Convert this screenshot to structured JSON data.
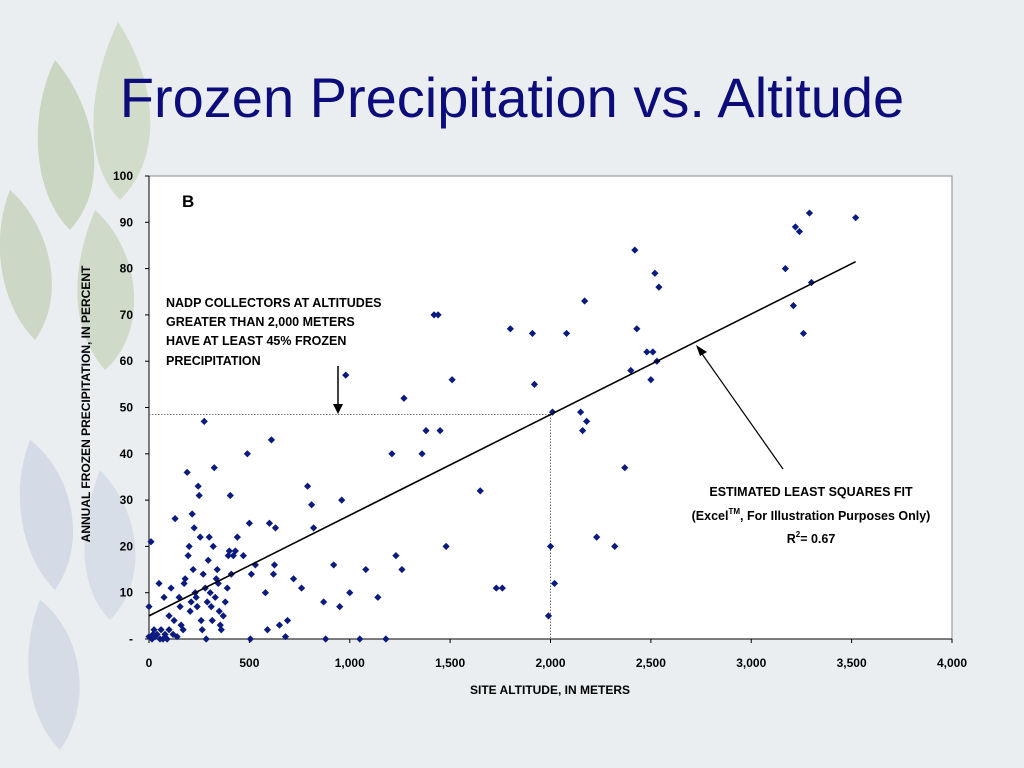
{
  "slide": {
    "title": "Frozen Precipitation vs. Altitude"
  },
  "colors": {
    "background": "#eaeef1",
    "title": "#0c0c7a",
    "marker": "#0a1a7e",
    "leaf_green": "#c9d6c1",
    "leaf_blue": "#d4dbe6"
  },
  "chart_data": {
    "type": "scatter",
    "panel_label": "B",
    "xlabel": "SITE ALTITUDE, IN METERS",
    "ylabel": "ANNUAL FROZEN PRECIPITATION, IN PERCENT",
    "xlim": [
      0,
      4000
    ],
    "ylim": [
      0,
      100
    ],
    "x_ticks": [
      {
        "value": 0,
        "label": "0"
      },
      {
        "value": 500,
        "label": "500"
      },
      {
        "value": 1000,
        "label": "1,000"
      },
      {
        "value": 1500,
        "label": "1,500"
      },
      {
        "value": 2000,
        "label": "2,000"
      },
      {
        "value": 2500,
        "label": "2,500"
      },
      {
        "value": 3000,
        "label": "3,000"
      },
      {
        "value": 3500,
        "label": "3,500"
      },
      {
        "value": 4000,
        "label": "4,000"
      }
    ],
    "y_ticks": [
      {
        "value": 0,
        "label": "-"
      },
      {
        "value": 10,
        "label": "10"
      },
      {
        "value": 20,
        "label": "20"
      },
      {
        "value": 30,
        "label": "30"
      },
      {
        "value": 40,
        "label": "40"
      },
      {
        "value": 50,
        "label": "50"
      },
      {
        "value": 60,
        "label": "60"
      },
      {
        "value": 70,
        "label": "70"
      },
      {
        "value": 80,
        "label": "80"
      },
      {
        "value": 90,
        "label": "90"
      },
      {
        "value": 100,
        "label": "100"
      }
    ],
    "grid": false,
    "marker": "diamond",
    "series": [
      {
        "points": [
          [
            0,
            7
          ],
          [
            0,
            0.5
          ],
          [
            10,
            21
          ],
          [
            15,
            0
          ],
          [
            20,
            1
          ],
          [
            25,
            2
          ],
          [
            30,
            0.5
          ],
          [
            40,
            1
          ],
          [
            50,
            12
          ],
          [
            55,
            0
          ],
          [
            60,
            2
          ],
          [
            70,
            0
          ],
          [
            75,
            9
          ],
          [
            80,
            1
          ],
          [
            90,
            0
          ],
          [
            100,
            5
          ],
          [
            100,
            2
          ],
          [
            110,
            11
          ],
          [
            120,
            1
          ],
          [
            125,
            4
          ],
          [
            130,
            26
          ],
          [
            140,
            0.5
          ],
          [
            150,
            9
          ],
          [
            155,
            7
          ],
          [
            160,
            3
          ],
          [
            170,
            2
          ],
          [
            175,
            12
          ],
          [
            180,
            13
          ],
          [
            190,
            36
          ],
          [
            195,
            18
          ],
          [
            200,
            20
          ],
          [
            205,
            6
          ],
          [
            210,
            8
          ],
          [
            215,
            27
          ],
          [
            220,
            15
          ],
          [
            225,
            24
          ],
          [
            230,
            10
          ],
          [
            235,
            9
          ],
          [
            240,
            7
          ],
          [
            245,
            33
          ],
          [
            250,
            31
          ],
          [
            255,
            22
          ],
          [
            260,
            4
          ],
          [
            265,
            2
          ],
          [
            270,
            14
          ],
          [
            275,
            47
          ],
          [
            280,
            11
          ],
          [
            285,
            0
          ],
          [
            290,
            8
          ],
          [
            295,
            17
          ],
          [
            300,
            22
          ],
          [
            305,
            10
          ],
          [
            310,
            7
          ],
          [
            315,
            4
          ],
          [
            320,
            20
          ],
          [
            325,
            37
          ],
          [
            330,
            9
          ],
          [
            335,
            13
          ],
          [
            340,
            15
          ],
          [
            345,
            12
          ],
          [
            350,
            6
          ],
          [
            355,
            3
          ],
          [
            360,
            2
          ],
          [
            370,
            5
          ],
          [
            380,
            8
          ],
          [
            390,
            11
          ],
          [
            395,
            18
          ],
          [
            400,
            19
          ],
          [
            405,
            31
          ],
          [
            410,
            14
          ],
          [
            420,
            18
          ],
          [
            430,
            19
          ],
          [
            440,
            22
          ],
          [
            470,
            18
          ],
          [
            490,
            40
          ],
          [
            500,
            25
          ],
          [
            505,
            0
          ],
          [
            510,
            14
          ],
          [
            530,
            16
          ],
          [
            580,
            10
          ],
          [
            590,
            2
          ],
          [
            600,
            25
          ],
          [
            610,
            43
          ],
          [
            620,
            14
          ],
          [
            625,
            16
          ],
          [
            630,
            24
          ],
          [
            650,
            3
          ],
          [
            680,
            0.5
          ],
          [
            690,
            4
          ],
          [
            720,
            13
          ],
          [
            760,
            11
          ],
          [
            790,
            33
          ],
          [
            810,
            29
          ],
          [
            820,
            24
          ],
          [
            870,
            8
          ],
          [
            880,
            0
          ],
          [
            920,
            16
          ],
          [
            950,
            7
          ],
          [
            960,
            30
          ],
          [
            980,
            57
          ],
          [
            1000,
            10
          ],
          [
            1050,
            0
          ],
          [
            1080,
            15
          ],
          [
            1140,
            9
          ],
          [
            1180,
            0
          ],
          [
            1210,
            40
          ],
          [
            1230,
            18
          ],
          [
            1260,
            15
          ],
          [
            1270,
            52
          ],
          [
            1360,
            40
          ],
          [
            1380,
            45
          ],
          [
            1420,
            70
          ],
          [
            1440,
            70
          ],
          [
            1450,
            45
          ],
          [
            1480,
            20
          ],
          [
            1510,
            56
          ],
          [
            1650,
            32
          ],
          [
            1730,
            11
          ],
          [
            1760,
            11
          ],
          [
            1800,
            67
          ],
          [
            1910,
            66
          ],
          [
            1920,
            55
          ],
          [
            1990,
            5
          ],
          [
            2000,
            20
          ],
          [
            2010,
            49
          ],
          [
            2020,
            12
          ],
          [
            2080,
            66
          ],
          [
            2150,
            49
          ],
          [
            2160,
            45
          ],
          [
            2170,
            73
          ],
          [
            2180,
            47
          ],
          [
            2230,
            22
          ],
          [
            2320,
            20
          ],
          [
            2370,
            37
          ],
          [
            2400,
            58
          ],
          [
            2420,
            84
          ],
          [
            2430,
            67
          ],
          [
            2480,
            62
          ],
          [
            2500,
            56
          ],
          [
            2510,
            62
          ],
          [
            2520,
            79
          ],
          [
            2530,
            60
          ],
          [
            2540,
            76
          ],
          [
            3170,
            80
          ],
          [
            3210,
            72
          ],
          [
            3220,
            89
          ],
          [
            3240,
            88
          ],
          [
            3260,
            66
          ],
          [
            3290,
            92
          ],
          [
            3300,
            77
          ],
          [
            3520,
            91
          ]
        ]
      }
    ],
    "fit_line": {
      "x": [
        0,
        3520
      ],
      "y": [
        5,
        81.5
      ]
    },
    "guides": {
      "x": 2000,
      "y": 48.5
    },
    "annotations": {
      "nadp_lines": [
        "NADP COLLECTORS AT ALTITUDES",
        "GREATER THAN 2,000 METERS",
        "HAVE AT LEAST 45% FROZEN",
        "PRECIPITATION"
      ],
      "fit_title": "ESTIMATED LEAST SQUARES FIT",
      "fit_excel_prefix": "(Excel",
      "fit_excel_sup": "TM",
      "fit_excel_suffix": ", For Illustration Purposes Only)",
      "r2_prefix": "R",
      "r2_sup": "2",
      "r2_value": "= 0.67"
    }
  }
}
